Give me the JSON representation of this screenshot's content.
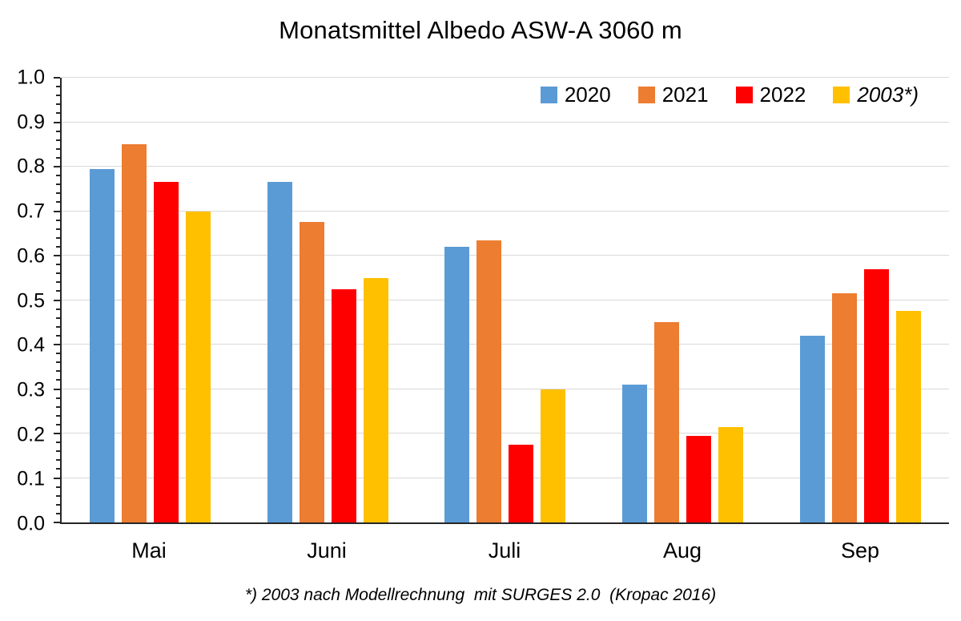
{
  "chart_data": {
    "type": "bar",
    "title": "Monatsmittel Albedo ASW-A 3060 m",
    "categories": [
      "Mai",
      "Juni",
      "Juli",
      "Aug",
      "Sep"
    ],
    "series": [
      {
        "name": "2020",
        "color": "#5B9BD5",
        "italic": false,
        "values": [
          0.795,
          0.765,
          0.62,
          0.31,
          0.42
        ]
      },
      {
        "name": "2021",
        "color": "#ED7D31",
        "italic": false,
        "values": [
          0.85,
          0.675,
          0.635,
          0.45,
          0.515
        ]
      },
      {
        "name": "2022",
        "color": "#FF0000",
        "italic": false,
        "values": [
          0.765,
          0.525,
          0.175,
          0.195,
          0.57
        ]
      },
      {
        "name": "2003*)",
        "color": "#FFC000",
        "italic": true,
        "values": [
          0.7,
          0.55,
          0.3,
          0.215,
          0.475
        ]
      }
    ],
    "ylim": [
      0,
      1.0
    ],
    "ytick_step": 0.1,
    "minor_tick_step": 0.02,
    "y_tick_labels": [
      "0.0",
      "0.1",
      "0.2",
      "0.3",
      "0.4",
      "0.5",
      "0.6",
      "0.7",
      "0.8",
      "0.9",
      "1.0"
    ],
    "grid": "horizontal",
    "legend_position": "top-right-inside",
    "footnote": "*) 2003 nach Modellrechnung  mit SURGES 2.0  (Kropac 2016)"
  },
  "colors": {
    "background": "#FFFFFF",
    "gridline": "#D9D9D9",
    "axis": "#262626",
    "text": "#000000"
  }
}
